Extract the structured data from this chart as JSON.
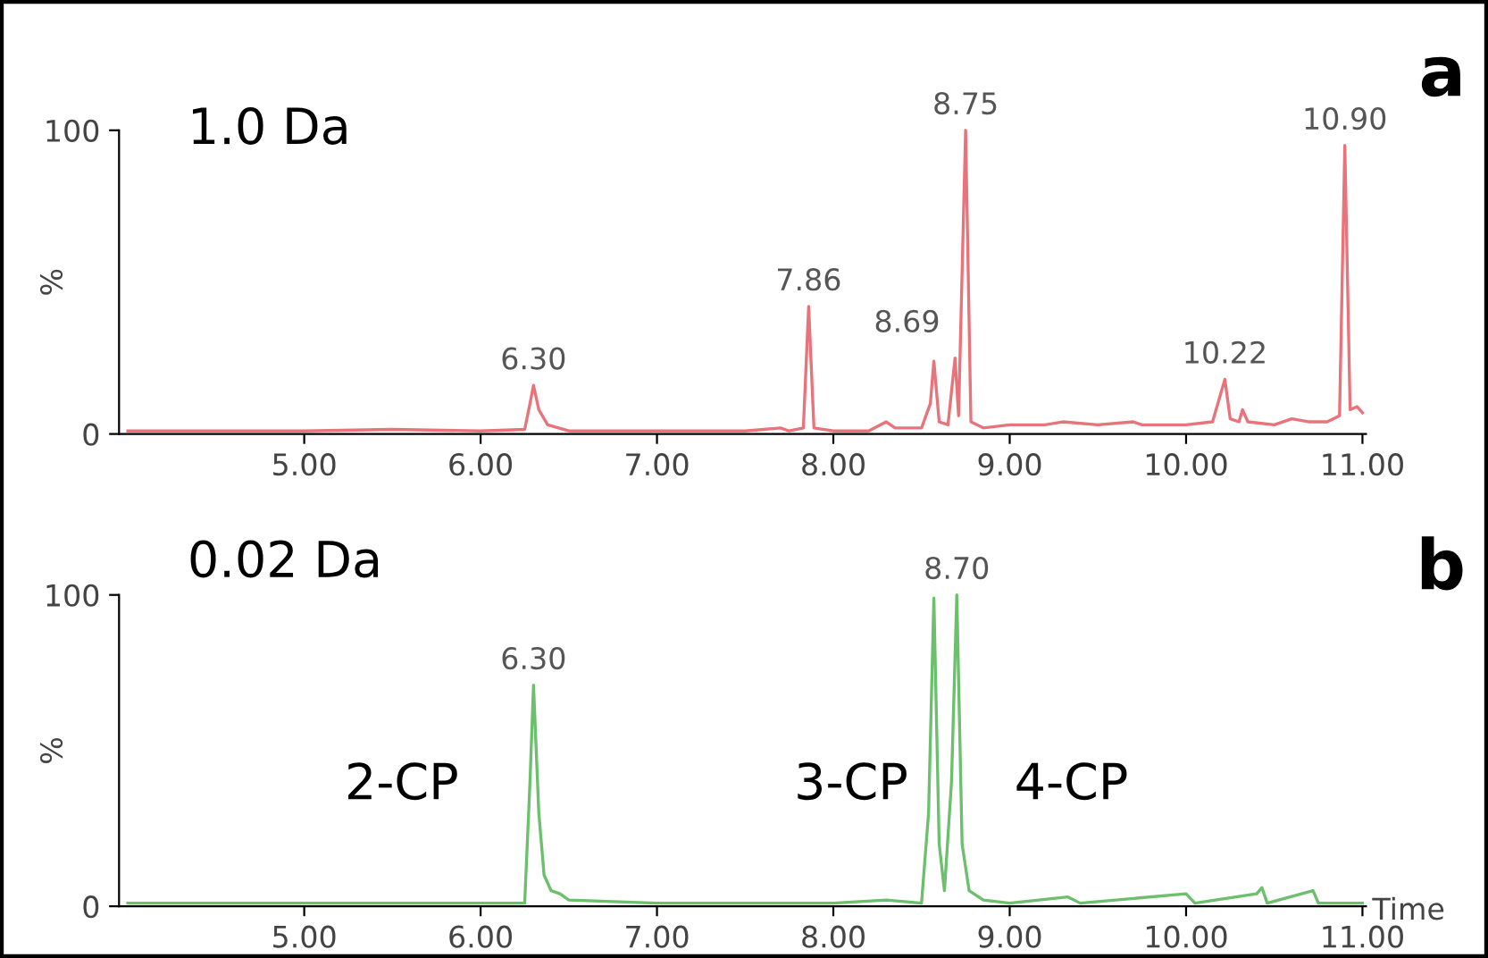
{
  "chart_data": [
    {
      "type": "line",
      "ylabel": "%",
      "xlim": [
        3.95,
        11.02
      ],
      "ylim": [
        0,
        100
      ],
      "xticks": [
        {
          "value": 5,
          "label": "5.00"
        },
        {
          "value": 6,
          "label": "6.00"
        },
        {
          "value": 7,
          "label": "7.00"
        },
        {
          "value": 8,
          "label": "8.00"
        },
        {
          "value": 9,
          "label": "9.00"
        },
        {
          "value": 10,
          "label": "10.00"
        },
        {
          "value": 11,
          "label": "11.00"
        }
      ],
      "yticks": [
        0,
        100
      ],
      "grid": false,
      "legend": false,
      "marker": "none",
      "line_style": "solid",
      "series": [
        {
          "color": "#e8737a",
          "x": [
            4.0,
            4.5,
            5.0,
            5.5,
            6.0,
            6.25,
            6.28,
            6.3,
            6.33,
            6.38,
            6.5,
            7.0,
            7.5,
            7.7,
            7.75,
            7.83,
            7.86,
            7.89,
            8.0,
            8.2,
            8.3,
            8.35,
            8.5,
            8.55,
            8.57,
            8.6,
            8.65,
            8.69,
            8.71,
            8.75,
            8.78,
            8.85,
            9.0,
            9.2,
            9.3,
            9.5,
            9.7,
            9.75,
            10.0,
            10.15,
            10.22,
            10.25,
            10.3,
            10.32,
            10.35,
            10.5,
            10.6,
            10.7,
            10.8,
            10.87,
            10.9,
            10.93,
            10.97,
            11.0
          ],
          "values": [
            1,
            1,
            1,
            1.5,
            1,
            1.5,
            10,
            16,
            8,
            3,
            1,
            1,
            1,
            2,
            1,
            2,
            42,
            2,
            1,
            1,
            4,
            2,
            2,
            10,
            24,
            4,
            3,
            25,
            6,
            100,
            4,
            2,
            3,
            3,
            4,
            3,
            4,
            3,
            3,
            4,
            18,
            5,
            4,
            8,
            4,
            3,
            5,
            4,
            4,
            6,
            95,
            8,
            9,
            7
          ]
        }
      ],
      "annotations": [
        "1.0 Da",
        "a",
        {
          "text": "6.30",
          "x": 6.3,
          "y": 16
        },
        {
          "text": "7.86",
          "x": 7.86,
          "y": 42
        },
        {
          "text": "8.69",
          "x": 8.69,
          "y": 25
        },
        {
          "text": "8.75",
          "x": 8.75,
          "y": 100
        },
        {
          "text": "10.22",
          "x": 10.22,
          "y": 18
        },
        {
          "text": "10.90",
          "x": 10.9,
          "y": 95
        }
      ]
    },
    {
      "type": "line",
      "ylabel": "%",
      "xlabel": "Time",
      "xlim": [
        3.95,
        11.02
      ],
      "ylim": [
        0,
        100
      ],
      "xticks": [
        {
          "value": 5,
          "label": "5.00"
        },
        {
          "value": 6,
          "label": "6.00"
        },
        {
          "value": 7,
          "label": "7.00"
        },
        {
          "value": 8,
          "label": "8.00"
        },
        {
          "value": 9,
          "label": "9.00"
        },
        {
          "value": 10,
          "label": "10.00"
        },
        {
          "value": 11,
          "label": "11.00"
        }
      ],
      "yticks": [
        0,
        100
      ],
      "grid": false,
      "legend": false,
      "marker": "none",
      "line_style": "solid",
      "series": [
        {
          "color": "#6cbf6c",
          "x": [
            4.0,
            5.0,
            6.0,
            6.25,
            6.28,
            6.3,
            6.33,
            6.36,
            6.4,
            6.45,
            6.5,
            7.0,
            8.0,
            8.3,
            8.5,
            8.54,
            8.57,
            8.6,
            8.63,
            8.67,
            8.7,
            8.73,
            8.77,
            8.85,
            9.0,
            9.33,
            9.4,
            10.0,
            10.05,
            10.4,
            10.43,
            10.46,
            10.72,
            10.75,
            11.0
          ],
          "values": [
            1,
            1,
            1,
            1,
            40,
            71,
            30,
            10,
            5,
            4,
            2,
            1,
            1,
            2,
            1,
            30,
            99,
            20,
            5,
            40,
            100,
            20,
            5,
            2,
            1,
            3,
            1,
            4,
            1,
            4,
            6,
            1,
            5,
            1,
            1
          ]
        }
      ],
      "annotations": [
        "0.02 Da",
        "b",
        {
          "text": "6.30",
          "x": 6.3,
          "y": 71
        },
        {
          "text": "8.70",
          "x": 8.7,
          "y": 100
        },
        "2-CP",
        "3-CP",
        "4-CP"
      ]
    }
  ]
}
